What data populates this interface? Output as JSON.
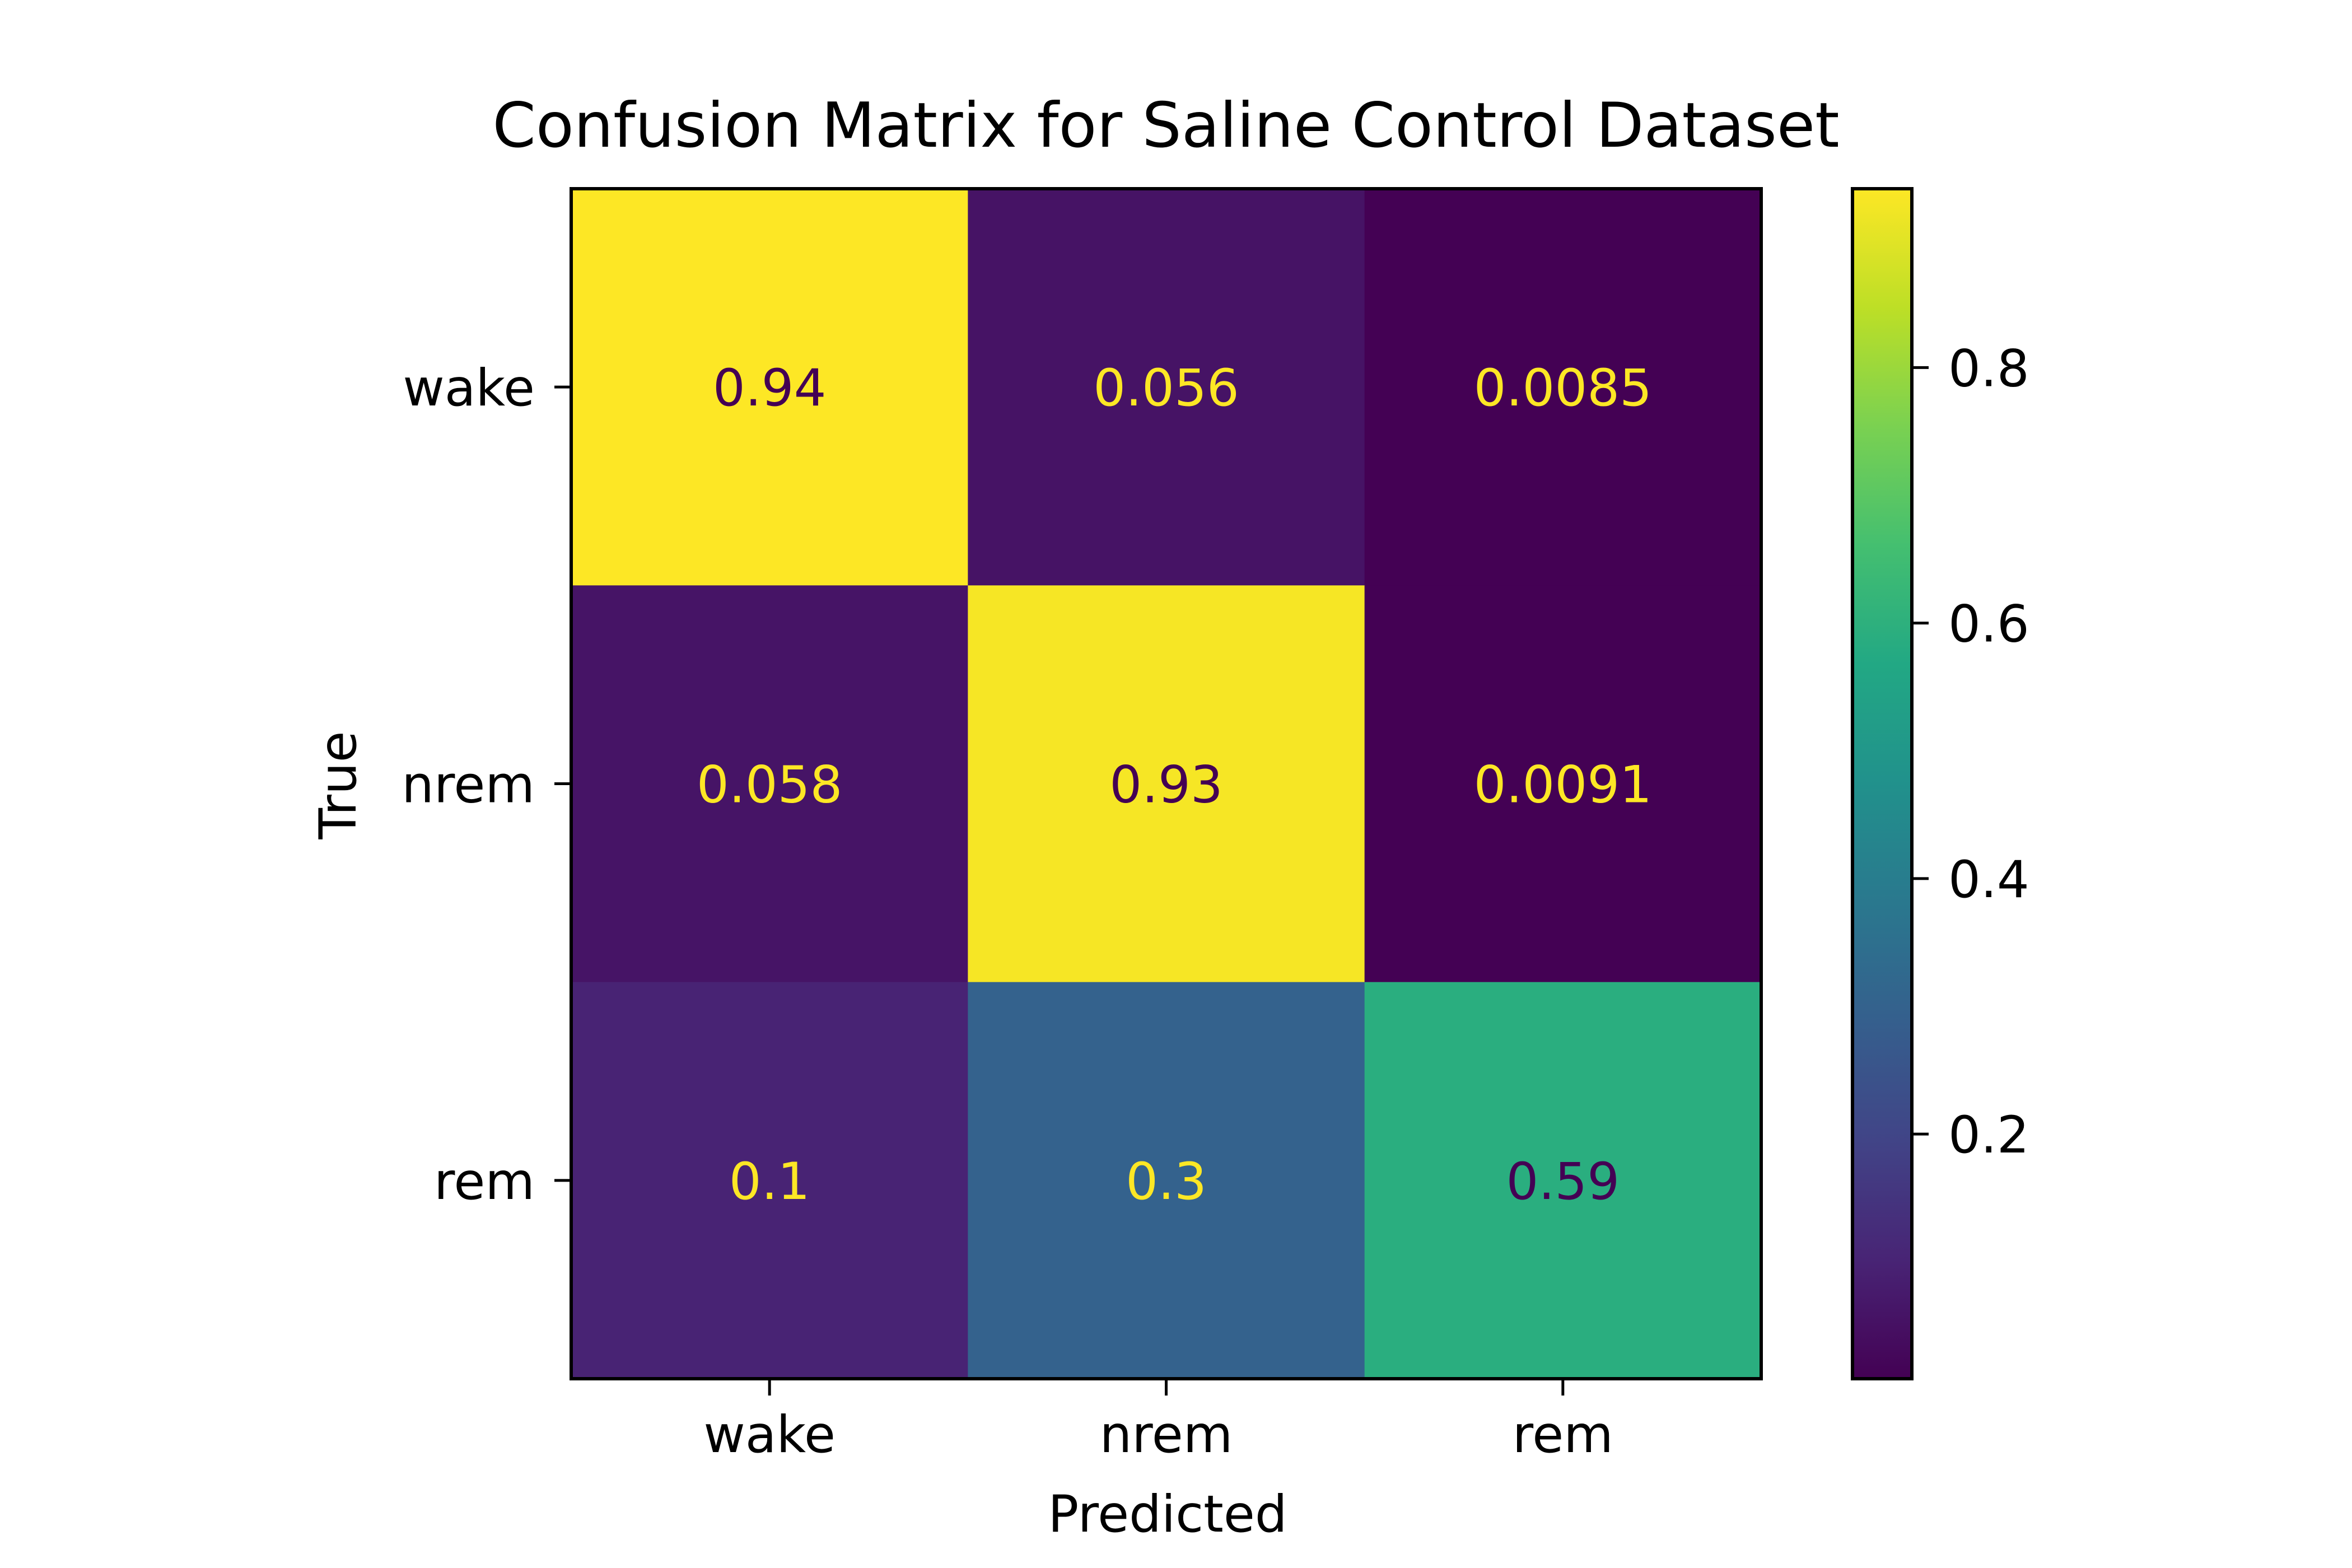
{
  "chart_data": {
    "type": "heatmap",
    "title": "Confusion Matrix for Saline Control Dataset",
    "xlabel": "Predicted",
    "ylabel": "True",
    "x_categories": [
      "wake",
      "nrem",
      "rem"
    ],
    "y_categories": [
      "wake",
      "nrem",
      "rem"
    ],
    "values": [
      [
        0.94,
        0.056,
        0.0085
      ],
      [
        0.058,
        0.93,
        0.0091
      ],
      [
        0.1,
        0.3,
        0.59
      ]
    ],
    "value_labels": [
      [
        "0.94",
        "0.056",
        "0.0085"
      ],
      [
        "0.058",
        "0.93",
        "0.0091"
      ],
      [
        "0.1",
        "0.3",
        "0.59"
      ]
    ],
    "colormap": "viridis",
    "colorbar": {
      "range": [
        0.0085,
        0.94
      ],
      "ticks": [
        0.2,
        0.4,
        0.6,
        0.8
      ],
      "tick_labels": [
        "0.2",
        "0.4",
        "0.6",
        "0.8"
      ]
    },
    "grid": false,
    "legend": "colorbar-right"
  },
  "colors": {
    "text_on_dark": "#fde725",
    "text_on_light": "#440154",
    "axes": "#000000",
    "background": "#ffffff"
  }
}
